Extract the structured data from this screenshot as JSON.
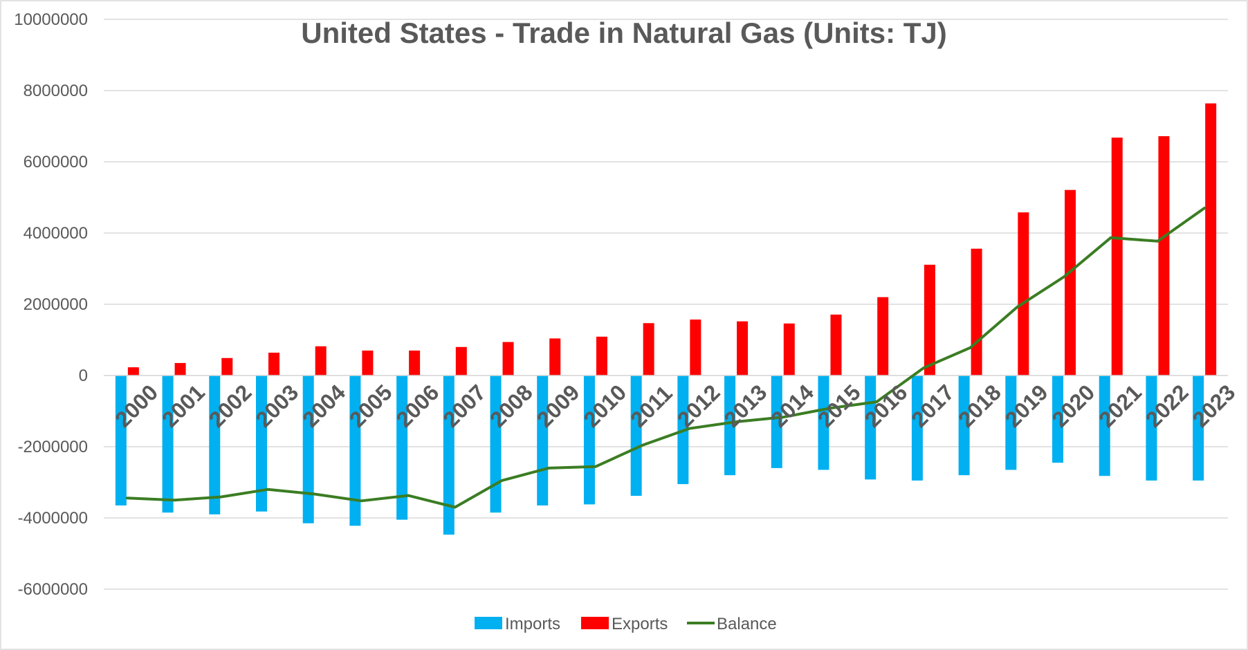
{
  "chart_data": {
    "type": "bar",
    "title": "United States - Trade in Natural Gas (Units: TJ)",
    "xlabel": "",
    "ylabel": "",
    "ylim": [
      -6000000,
      10000000
    ],
    "yticks": [
      "10000000",
      "8000000",
      "6000000",
      "4000000",
      "2000000",
      "0",
      "-2000000",
      "-4000000",
      "-6000000"
    ],
    "categories": [
      "2000",
      "2001",
      "2002",
      "2003",
      "2004",
      "2005",
      "2006",
      "2007",
      "2008",
      "2009",
      "2010",
      "2011",
      "2012",
      "2013",
      "2014",
      "2015",
      "2016",
      "2017",
      "2018",
      "2019",
      "2020",
      "2021",
      "2022",
      "2023"
    ],
    "series": [
      {
        "name": "Imports",
        "type": "bar",
        "color": "#00B0F0",
        "values": [
          -3650000,
          -3850000,
          -3900000,
          -3820000,
          -4150000,
          -4220000,
          -4050000,
          -4470000,
          -3850000,
          -3650000,
          -3620000,
          -3380000,
          -3050000,
          -2800000,
          -2600000,
          -2650000,
          -2920000,
          -2950000,
          -2800000,
          -2650000,
          -2450000,
          -2820000,
          -2950000,
          -2950000
        ]
      },
      {
        "name": "Exports",
        "type": "bar",
        "color": "#FF0000",
        "values": [
          230000,
          350000,
          490000,
          640000,
          820000,
          700000,
          700000,
          800000,
          940000,
          1040000,
          1090000,
          1470000,
          1570000,
          1520000,
          1460000,
          1710000,
          2200000,
          3110000,
          3560000,
          4580000,
          5210000,
          6680000,
          6720000,
          7640000
        ]
      },
      {
        "name": "Balance",
        "type": "line",
        "color": "#3B7D23",
        "values": [
          -3440000,
          -3500000,
          -3410000,
          -3200000,
          -3330000,
          -3520000,
          -3370000,
          -3700000,
          -2950000,
          -2600000,
          -2560000,
          -1960000,
          -1490000,
          -1300000,
          -1170000,
          -920000,
          -740000,
          210000,
          780000,
          1920000,
          2770000,
          3870000,
          3770000,
          4700000
        ]
      }
    ],
    "legend": {
      "position": "bottom",
      "items": [
        "Imports",
        "Exports",
        "Balance"
      ]
    },
    "grid": true,
    "x_labels_rotated": true
  }
}
